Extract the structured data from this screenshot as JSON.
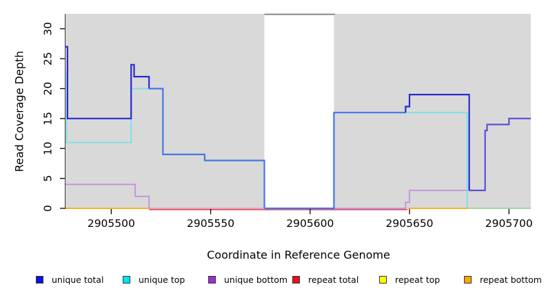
{
  "axes": {
    "x_label": "Coordinate in Reference Genome",
    "y_label": "Read Coverage Depth",
    "x_ticks": [
      2905500,
      2905550,
      2905600,
      2905650,
      2905700
    ],
    "y_ticks": [
      0,
      5,
      10,
      15,
      20,
      25,
      30
    ],
    "xlim": [
      2905477,
      2905711
    ],
    "ylim": [
      0,
      32.5
    ]
  },
  "legend": {
    "items": [
      {
        "label": "unique total",
        "color": "#0f0fe8"
      },
      {
        "label": "unique top",
        "color": "#00e5ee"
      },
      {
        "label": "unique bottom",
        "color": "#9a30d0"
      },
      {
        "label": "repeat total",
        "color": "#e8101f"
      },
      {
        "label": "repeat top",
        "color": "#ffff00"
      },
      {
        "label": "repeat bottom",
        "color": "#ffa500"
      }
    ]
  },
  "chart_data": {
    "type": "line",
    "title": "",
    "xlabel": "Coordinate in Reference Genome",
    "ylabel": "Read Coverage Depth",
    "xlim": [
      2905477,
      2905711
    ],
    "ylim": [
      0,
      32.5
    ],
    "grid": false,
    "plot_background_color": "#d9d9d9",
    "masked_region": {
      "from": 2905577,
      "to": 2905612,
      "note": "white gap with gray marker line at top of plot"
    },
    "background_regions": [
      [
        2905477,
        2905577
      ],
      [
        2905612,
        2905711
      ]
    ],
    "series": [
      {
        "name": "unique total",
        "color": "#2929d1",
        "steps": [
          [
            2905477,
            27
          ],
          [
            2905478,
            15
          ],
          [
            2905510,
            24
          ],
          [
            2905512,
            22
          ],
          [
            2905519,
            20
          ],
          [
            2905526,
            9
          ],
          [
            2905547,
            8
          ],
          [
            2905577,
            0
          ],
          [
            2905612,
            16
          ],
          [
            2905648,
            17
          ],
          [
            2905650,
            19
          ],
          [
            2905680,
            3
          ],
          [
            2905688,
            13
          ],
          [
            2905689,
            14
          ],
          [
            2905700,
            15
          ],
          [
            2905711,
            15
          ]
        ]
      },
      {
        "name": "unique top",
        "color": "#7ce0e8",
        "steps": [
          [
            2905477,
            23
          ],
          [
            2905478,
            11
          ],
          [
            2905510,
            20
          ],
          [
            2905526,
            9
          ],
          [
            2905547,
            8
          ],
          [
            2905577,
            0
          ],
          [
            2905612,
            16
          ],
          [
            2905679,
            0
          ],
          [
            2905711,
            0
          ]
        ]
      },
      {
        "name": "unique bottom",
        "color": "#c48fdb",
        "steps": [
          [
            2905477,
            4
          ],
          [
            2905512,
            2
          ],
          [
            2905519,
            0
          ],
          [
            2905648,
            1
          ],
          [
            2905650,
            3
          ],
          [
            2905688,
            13
          ],
          [
            2905689,
            14
          ],
          [
            2905700,
            15
          ],
          [
            2905711,
            15
          ]
        ]
      },
      {
        "name": "repeat total",
        "color": "#e0556a",
        "steps": [
          [
            2905477,
            0
          ],
          [
            2905711,
            0
          ]
        ]
      },
      {
        "name": "repeat top",
        "color": "#ffff00",
        "steps": [
          [
            2905477,
            0
          ],
          [
            2905711,
            0
          ]
        ]
      },
      {
        "name": "repeat bottom",
        "color": "#ffa500",
        "steps": [
          [
            2905477,
            0
          ],
          [
            2905711,
            0
          ]
        ]
      }
    ],
    "render": {
      "blue_runs": [
        {
          "color": "#2929d1",
          "pts": [
            [
              2905477,
              27
            ],
            [
              2905478,
              27
            ],
            [
              2905478,
              15
            ],
            [
              2905510,
              15
            ],
            [
              2905510,
              24
            ],
            [
              2905511.5,
              24
            ],
            [
              2905511.5,
              22
            ],
            [
              2905519,
              22
            ],
            [
              2905519,
              20
            ]
          ]
        },
        {
          "color": "#4476e8",
          "pts": [
            [
              2905519,
              20
            ],
            [
              2905526,
              20
            ],
            [
              2905526,
              9
            ],
            [
              2905547,
              9
            ],
            [
              2905547,
              8
            ],
            [
              2905577,
              8
            ],
            [
              2905577,
              0
            ],
            [
              2905612,
              0
            ],
            [
              2905612,
              16
            ],
            [
              2905648,
              16
            ]
          ]
        },
        {
          "color": "#2929d1",
          "pts": [
            [
              2905648,
              16
            ],
            [
              2905648,
              17
            ],
            [
              2905650,
              17
            ],
            [
              2905650,
              19
            ],
            [
              2905680,
              19
            ],
            [
              2905680,
              3
            ]
          ]
        },
        {
          "color": "#5a50d8",
          "pts": [
            [
              2905680,
              3
            ],
            [
              2905688,
              3
            ],
            [
              2905688,
              13
            ],
            [
              2905689,
              13
            ],
            [
              2905689,
              14
            ],
            [
              2905700,
              14
            ],
            [
              2905700,
              15
            ],
            [
              2905711,
              15
            ]
          ]
        }
      ],
      "cyan_pts": [
        [
          2905477.6,
          23
        ],
        [
          2905477.6,
          11
        ],
        [
          2905510,
          11
        ],
        [
          2905510,
          20
        ],
        [
          2905526,
          20
        ],
        [
          2905526,
          9
        ],
        [
          2905547,
          9
        ],
        [
          2905547,
          8
        ],
        [
          2905577,
          8
        ],
        [
          2905577,
          0
        ],
        [
          2905612,
          0
        ],
        [
          2905612,
          16
        ],
        [
          2905679,
          16
        ],
        [
          2905679,
          0
        ]
      ],
      "purple_pts": [
        [
          2905477,
          4
        ],
        [
          2905512,
          4
        ],
        [
          2905512,
          2
        ],
        [
          2905519,
          2
        ],
        [
          2905519,
          0
        ],
        [
          2905648,
          0
        ],
        [
          2905648,
          1
        ],
        [
          2905650,
          1
        ],
        [
          2905650,
          3
        ],
        [
          2905688,
          3
        ],
        [
          2905688,
          13
        ],
        [
          2905689,
          13
        ],
        [
          2905689,
          14
        ],
        [
          2905700,
          14
        ],
        [
          2905700,
          15
        ],
        [
          2905711,
          15
        ]
      ],
      "baseline_segments": [
        {
          "color": "#ffa500",
          "from": 2905477,
          "to": 2905519
        },
        {
          "color": "#eda3bc",
          "from": 2905519,
          "to": 2905577
        },
        {
          "color": "#ffa500",
          "from": 2905649,
          "to": 2905679.5
        },
        {
          "color": "#8fd48f",
          "from": 2905679.5,
          "to": 2905711
        }
      ],
      "red_underline": {
        "color": "#e0556a",
        "from": 2905519,
        "to": 2905649
      },
      "gap_marker": {
        "color": "#999999",
        "from": 2905577,
        "to": 2905612.5
      }
    }
  }
}
